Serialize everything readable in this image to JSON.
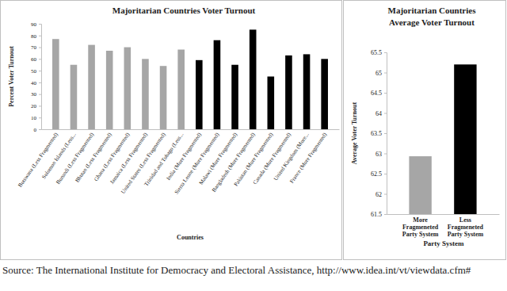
{
  "chart_data": [
    {
      "type": "bar",
      "title": "Majoritarian Countries Voter Turnout",
      "x_label": "Countries",
      "y_label": "Percent Voter Turnout",
      "categories": [
        "Botswana (Less Fragmented)",
        "Solomon Islands (Less...",
        "Burundi (Less Fragmented)",
        "Bhutan (Less Fragmented)",
        "Ghana (Less Fragmented)",
        "Jamaica (Less Fragmented)",
        "United States (Less Fragmented)",
        "Trinidad and Tobago (Less...",
        "India (More Fragmented)",
        "Sierra Leone (More Fragmented)",
        "Malawi (More Fragmented)",
        "Bangladesh (More Fragmented)",
        "Pakistan (More Fragmented)",
        "Canada (More Fragmented)",
        "United Kingdom (More...",
        "France (More Fragmented)"
      ],
      "values": [
        77,
        55,
        72,
        67,
        70,
        60,
        54,
        68,
        59,
        76,
        55,
        85,
        45,
        63,
        64,
        60
      ],
      "colors": [
        "#a6a6a6",
        "#a6a6a6",
        "#a6a6a6",
        "#a6a6a6",
        "#a6a6a6",
        "#a6a6a6",
        "#a6a6a6",
        "#a6a6a6",
        "#000000",
        "#000000",
        "#000000",
        "#000000",
        "#000000",
        "#000000",
        "#000000",
        "#000000"
      ],
      "ylim": [
        0,
        90
      ],
      "yticks": [
        0,
        10,
        20,
        30,
        40,
        50,
        60,
        70,
        80,
        90
      ],
      "grid": false
    },
    {
      "type": "bar",
      "title": "Majoritarian Countries Average Voter Turnout",
      "x_label": "Party System",
      "y_label": "Average Voter Turnout",
      "categories": [
        "More Fragmeneted Party System",
        "Less Fragmeneted Party System"
      ],
      "values": [
        62.93,
        65.2
      ],
      "colors": [
        "#a6a6a6",
        "#000000"
      ],
      "ylim": [
        61.5,
        65.5
      ],
      "yticks": [
        61.5,
        62,
        62.5,
        63,
        63.5,
        64,
        64.5,
        65,
        65.5
      ],
      "grid": false
    }
  ],
  "source": "Source: The International Institute for Democracy and Electoral Assistance, http://www.idea.int/vt/viewdata.cfm#"
}
